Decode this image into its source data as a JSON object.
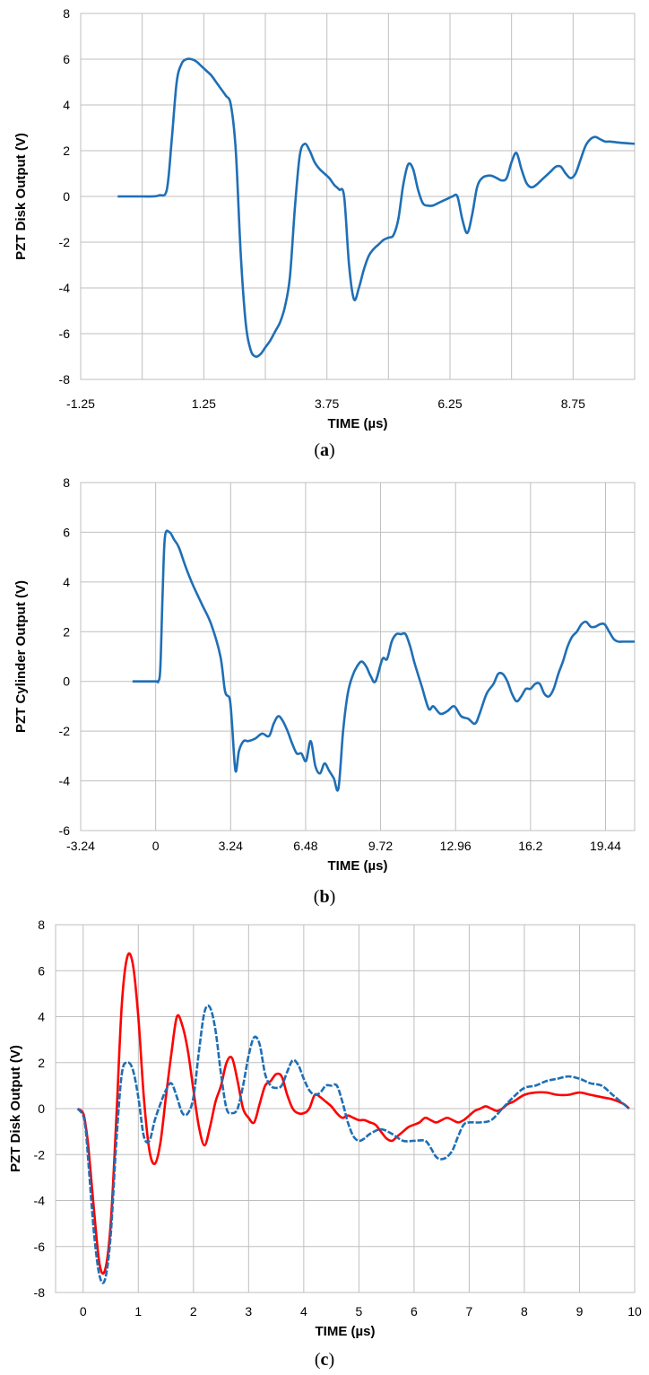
{
  "chart_data": [
    {
      "type": "line",
      "panel": "a",
      "caption_letter": "a",
      "xlabel": "TIME  (µs)",
      "ylabel": "PZT Disk Output  (V)",
      "xlim": [
        -1.25,
        10.0
      ],
      "ylim": [
        -8,
        8
      ],
      "xticks": [
        "-1.25",
        "1.25",
        "3.75",
        "6.25",
        "8.75"
      ],
      "xtick_values": [
        -1.25,
        1.25,
        3.75,
        6.25,
        8.75
      ],
      "xgrid": [
        -1.25,
        0.0,
        1.25,
        2.5,
        3.75,
        5.0,
        6.25,
        7.5,
        8.75
      ],
      "yticks": [
        "-8",
        "-6",
        "-4",
        "-2",
        "0",
        "2",
        "4",
        "6",
        "8"
      ],
      "ytick_values": [
        -8,
        -6,
        -4,
        -2,
        0,
        2,
        4,
        6,
        8
      ],
      "grid": true,
      "series": [
        {
          "color": "#1f6fb5",
          "style": "solid",
          "x": [
            -0.5,
            0.0,
            0.2,
            0.35,
            0.5,
            0.6,
            0.7,
            0.8,
            0.9,
            1.0,
            1.1,
            1.2,
            1.3,
            1.4,
            1.5,
            1.6,
            1.7,
            1.8,
            1.9,
            2.0,
            2.1,
            2.2,
            2.3,
            2.4,
            2.5,
            2.6,
            2.7,
            2.8,
            2.9,
            3.0,
            3.1,
            3.2,
            3.3,
            3.4,
            3.5,
            3.6,
            3.7,
            3.8,
            3.9,
            4.0,
            4.1,
            4.2,
            4.3,
            4.4,
            4.5,
            4.6,
            4.7,
            4.8,
            4.9,
            5.0,
            5.1,
            5.2,
            5.3,
            5.4,
            5.5,
            5.6,
            5.7,
            5.8,
            5.9,
            6.0,
            6.1,
            6.2,
            6.3,
            6.4,
            6.5,
            6.6,
            6.7,
            6.8,
            6.9,
            7.0,
            7.1,
            7.2,
            7.3,
            7.4,
            7.5,
            7.6,
            7.7,
            7.8,
            7.9,
            8.0,
            8.1,
            8.2,
            8.3,
            8.4,
            8.5,
            8.6,
            8.7,
            8.8,
            8.9,
            9.0,
            9.1,
            9.2,
            9.3,
            9.4,
            9.5,
            9.7,
            10.0
          ],
          "y": [
            0,
            0,
            0,
            0.05,
            0.3,
            2.5,
            5.0,
            5.8,
            6.0,
            6.0,
            5.9,
            5.7,
            5.5,
            5.3,
            5.0,
            4.7,
            4.4,
            4.0,
            2.0,
            -2.5,
            -5.5,
            -6.7,
            -7.0,
            -6.9,
            -6.6,
            -6.3,
            -5.9,
            -5.5,
            -4.8,
            -3.5,
            -0.5,
            1.8,
            2.3,
            2.0,
            1.5,
            1.2,
            1.0,
            0.8,
            0.5,
            0.3,
            0.0,
            -3.0,
            -4.5,
            -4.0,
            -3.2,
            -2.6,
            -2.3,
            -2.1,
            -1.9,
            -1.8,
            -1.7,
            -1.0,
            0.5,
            1.4,
            1.2,
            0.3,
            -0.3,
            -0.4,
            -0.4,
            -0.3,
            -0.2,
            -0.1,
            0.0,
            0.0,
            -1.0,
            -1.6,
            -0.8,
            0.4,
            0.8,
            0.9,
            0.9,
            0.8,
            0.7,
            0.8,
            1.5,
            1.9,
            1.2,
            0.6,
            0.4,
            0.5,
            0.7,
            0.9,
            1.1,
            1.3,
            1.3,
            1.0,
            0.8,
            1.0,
            1.6,
            2.2,
            2.5,
            2.6,
            2.5,
            2.4,
            2.4,
            2.35,
            2.3
          ]
        }
      ]
    },
    {
      "type": "line",
      "panel": "b",
      "caption_letter": "b",
      "xlabel": "TIME  (µs)",
      "ylabel": "PZT Cylinder Output  (V)",
      "xlim": [
        -3.24,
        20.7
      ],
      "ylim": [
        -6,
        8
      ],
      "xticks": [
        "-3.24",
        "0",
        "3.24",
        "6.48",
        "9.72",
        "12.96",
        "16.2",
        "19.44"
      ],
      "xtick_values": [
        -3.24,
        0,
        3.24,
        6.48,
        9.72,
        12.96,
        16.2,
        19.44
      ],
      "xgrid": [
        -3.24,
        0,
        3.24,
        6.48,
        9.72,
        12.96,
        16.2,
        19.44
      ],
      "yticks": [
        "-6",
        "-4",
        "-2",
        "0",
        "2",
        "4",
        "6",
        "8"
      ],
      "ytick_values": [
        -6,
        -4,
        -2,
        0,
        2,
        4,
        6,
        8
      ],
      "grid": true,
      "series": [
        {
          "color": "#1f6fb5",
          "style": "solid",
          "x": [
            -1.0,
            0.0,
            0.1,
            0.2,
            0.3,
            0.4,
            0.6,
            0.8,
            1.0,
            1.3,
            1.6,
            2.0,
            2.4,
            2.8,
            3.0,
            3.2,
            3.3,
            3.45,
            3.6,
            3.8,
            4.0,
            4.3,
            4.6,
            4.9,
            5.1,
            5.3,
            5.5,
            5.7,
            5.9,
            6.1,
            6.3,
            6.5,
            6.7,
            6.9,
            7.1,
            7.3,
            7.5,
            7.7,
            7.9,
            8.1,
            8.3,
            8.5,
            8.7,
            8.9,
            9.1,
            9.3,
            9.5,
            9.8,
            10.0,
            10.2,
            10.4,
            10.6,
            10.8,
            11.0,
            11.2,
            11.5,
            11.8,
            12.0,
            12.3,
            12.6,
            12.9,
            13.2,
            13.5,
            13.8,
            14.0,
            14.3,
            14.6,
            14.8,
            15.0,
            15.2,
            15.4,
            15.6,
            15.8,
            16.0,
            16.2,
            16.4,
            16.6,
            16.8,
            17.0,
            17.2,
            17.4,
            17.6,
            17.8,
            18.0,
            18.2,
            18.4,
            18.6,
            18.8,
            19.0,
            19.2,
            19.4,
            19.6,
            19.8,
            20.0,
            20.2,
            20.4,
            20.7
          ],
          "y": [
            0,
            0,
            0,
            0.5,
            3.5,
            5.8,
            6.0,
            5.7,
            5.4,
            4.6,
            3.9,
            3.1,
            2.3,
            1.0,
            -0.4,
            -0.7,
            -1.7,
            -3.6,
            -2.8,
            -2.4,
            -2.4,
            -2.3,
            -2.1,
            -2.2,
            -1.7,
            -1.4,
            -1.6,
            -2.0,
            -2.5,
            -2.9,
            -2.9,
            -3.2,
            -2.4,
            -3.4,
            -3.7,
            -3.3,
            -3.6,
            -3.9,
            -4.3,
            -2.0,
            -0.5,
            0.2,
            0.6,
            0.8,
            0.6,
            0.2,
            0.0,
            0.9,
            0.9,
            1.6,
            1.9,
            1.9,
            1.9,
            1.4,
            0.7,
            -0.2,
            -1.1,
            -1.0,
            -1.3,
            -1.2,
            -1.0,
            -1.4,
            -1.5,
            -1.7,
            -1.3,
            -0.5,
            -0.1,
            0.3,
            0.3,
            0.0,
            -0.5,
            -0.8,
            -0.6,
            -0.3,
            -0.3,
            -0.1,
            -0.1,
            -0.5,
            -0.6,
            -0.3,
            0.3,
            0.8,
            1.4,
            1.8,
            2.0,
            2.3,
            2.4,
            2.2,
            2.2,
            2.3,
            2.3,
            2.0,
            1.7,
            1.6,
            1.6,
            1.6,
            1.6
          ]
        }
      ]
    },
    {
      "type": "line",
      "panel": "c",
      "caption_letter": "c",
      "xlabel": "TIME  (µs)",
      "ylabel": "PZT Disk Output  (V)",
      "xlim": [
        -0.5,
        10
      ],
      "ylim": [
        -8,
        8
      ],
      "xticks": [
        "0",
        "1",
        "2",
        "3",
        "4",
        "5",
        "6",
        "7",
        "8",
        "9",
        "10"
      ],
      "xtick_values": [
        0,
        1,
        2,
        3,
        4,
        5,
        6,
        7,
        8,
        9,
        10
      ],
      "xgrid": [
        0,
        1,
        2,
        3,
        4,
        5,
        6,
        7,
        8,
        9,
        10
      ],
      "yticks": [
        "-8",
        "-6",
        "-4",
        "-2",
        "0",
        "2",
        "4",
        "6",
        "8"
      ],
      "ytick_values": [
        -8,
        -6,
        -4,
        -2,
        0,
        2,
        4,
        6,
        8
      ],
      "grid": true,
      "series": [
        {
          "color": "#ff0000",
          "style": "solid",
          "x": [
            -0.1,
            0.0,
            0.05,
            0.1,
            0.2,
            0.3,
            0.4,
            0.5,
            0.6,
            0.7,
            0.8,
            0.9,
            1.0,
            1.1,
            1.2,
            1.3,
            1.4,
            1.5,
            1.6,
            1.7,
            1.8,
            1.9,
            2.0,
            2.1,
            2.2,
            2.3,
            2.4,
            2.5,
            2.6,
            2.7,
            2.8,
            2.9,
            3.0,
            3.1,
            3.2,
            3.3,
            3.4,
            3.5,
            3.6,
            3.7,
            3.8,
            3.9,
            4.0,
            4.1,
            4.2,
            4.3,
            4.4,
            4.5,
            4.6,
            4.7,
            4.8,
            4.9,
            5.0,
            5.1,
            5.2,
            5.3,
            5.4,
            5.5,
            5.6,
            5.7,
            5.8,
            5.9,
            6.0,
            6.1,
            6.2,
            6.3,
            6.4,
            6.5,
            6.6,
            6.7,
            6.8,
            6.9,
            7.0,
            7.1,
            7.2,
            7.3,
            7.4,
            7.5,
            7.6,
            7.7,
            7.8,
            8.0,
            8.2,
            8.4,
            8.6,
            8.8,
            9.0,
            9.2,
            9.4,
            9.6,
            9.8,
            9.9
          ],
          "y": [
            0,
            -0.2,
            -0.8,
            -1.8,
            -4.5,
            -6.8,
            -7.0,
            -5.0,
            -0.5,
            4.5,
            6.6,
            6.3,
            4.0,
            0.5,
            -1.8,
            -2.4,
            -1.5,
            0.5,
            2.4,
            4.0,
            3.6,
            2.5,
            0.8,
            -0.8,
            -1.6,
            -0.8,
            0.3,
            1.0,
            2.0,
            2.2,
            1.2,
            0.0,
            -0.4,
            -0.6,
            0.2,
            1.0,
            1.2,
            1.5,
            1.4,
            0.6,
            0.0,
            -0.2,
            -0.2,
            0.0,
            0.6,
            0.5,
            0.3,
            0.1,
            -0.2,
            -0.4,
            -0.3,
            -0.4,
            -0.5,
            -0.5,
            -0.6,
            -0.7,
            -1.0,
            -1.3,
            -1.4,
            -1.2,
            -1.0,
            -0.8,
            -0.7,
            -0.6,
            -0.4,
            -0.5,
            -0.6,
            -0.5,
            -0.4,
            -0.5,
            -0.6,
            -0.5,
            -0.3,
            -0.1,
            0.0,
            0.1,
            0.0,
            -0.1,
            0.0,
            0.2,
            0.3,
            0.6,
            0.7,
            0.7,
            0.6,
            0.6,
            0.7,
            0.6,
            0.5,
            0.4,
            0.2,
            0.0
          ]
        },
        {
          "color": "#1f6fb5",
          "style": "dashed",
          "x": [
            -0.1,
            0.0,
            0.05,
            0.1,
            0.2,
            0.3,
            0.4,
            0.5,
            0.6,
            0.7,
            0.8,
            0.9,
            1.0,
            1.1,
            1.2,
            1.3,
            1.4,
            1.5,
            1.6,
            1.7,
            1.8,
            1.9,
            2.0,
            2.1,
            2.2,
            2.3,
            2.4,
            2.5,
            2.6,
            2.7,
            2.8,
            2.9,
            3.0,
            3.1,
            3.2,
            3.3,
            3.4,
            3.5,
            3.6,
            3.7,
            3.8,
            3.9,
            4.0,
            4.1,
            4.2,
            4.3,
            4.4,
            4.5,
            4.6,
            4.7,
            4.8,
            4.9,
            5.0,
            5.1,
            5.2,
            5.4,
            5.6,
            5.8,
            6.0,
            6.2,
            6.3,
            6.4,
            6.5,
            6.6,
            6.7,
            6.8,
            6.9,
            7.0,
            7.2,
            7.4,
            7.6,
            7.8,
            8.0,
            8.2,
            8.4,
            8.6,
            8.8,
            9.0,
            9.2,
            9.4,
            9.6,
            9.8,
            9.9
          ],
          "y": [
            0,
            -0.3,
            -1.0,
            -2.5,
            -5.5,
            -7.3,
            -7.4,
            -5.5,
            -1.5,
            1.5,
            2.0,
            1.7,
            0.5,
            -1.2,
            -1.4,
            -0.5,
            0.2,
            0.8,
            1.1,
            0.5,
            -0.2,
            -0.2,
            0.5,
            2.5,
            4.2,
            4.4,
            3.4,
            1.5,
            0.0,
            -0.2,
            0.0,
            1.0,
            2.3,
            3.1,
            2.8,
            1.5,
            1.0,
            0.9,
            1.0,
            1.6,
            2.1,
            1.9,
            1.3,
            0.8,
            0.6,
            0.7,
            1.0,
            1.0,
            1.0,
            0.3,
            -0.6,
            -1.2,
            -1.4,
            -1.3,
            -1.1,
            -0.9,
            -1.1,
            -1.4,
            -1.4,
            -1.4,
            -1.7,
            -2.1,
            -2.2,
            -2.1,
            -1.8,
            -1.2,
            -0.7,
            -0.6,
            -0.6,
            -0.5,
            0.0,
            0.5,
            0.9,
            1.0,
            1.2,
            1.3,
            1.4,
            1.3,
            1.1,
            1.0,
            0.6,
            0.2,
            0.0
          ]
        }
      ]
    }
  ]
}
